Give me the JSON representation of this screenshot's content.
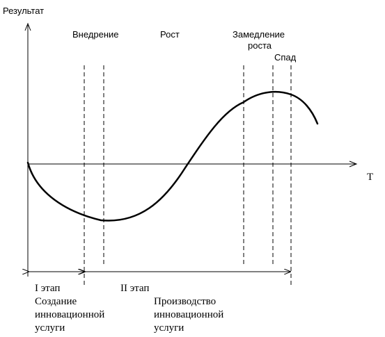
{
  "axes": {
    "y_label": "Результат",
    "x_label": "Т"
  },
  "phases": {
    "introduction": "Внедрение",
    "growth": "Рост",
    "slowdown_line1": "Замедление",
    "slowdown_line2": "роста",
    "decline": "Спад"
  },
  "stages": {
    "stage1_title": "I этап",
    "stage1_desc_line1": "Создание",
    "stage1_desc_line2": "инновационной",
    "stage1_desc_line3": "услуги",
    "stage2_title": "II этап",
    "stage2_desc_line1": "Производство",
    "stage2_desc_line2": "инновационной",
    "stage2_desc_line3": "услуги"
  },
  "colors": {
    "ink": "#000000",
    "background": "#ffffff"
  }
}
